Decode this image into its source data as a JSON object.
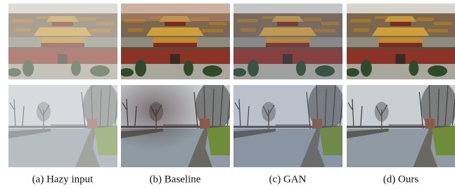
{
  "figure": {
    "captions": [
      "(a) Hazy input",
      "(b) Baseline",
      "(c) GAN",
      "(d) Ours"
    ]
  }
}
